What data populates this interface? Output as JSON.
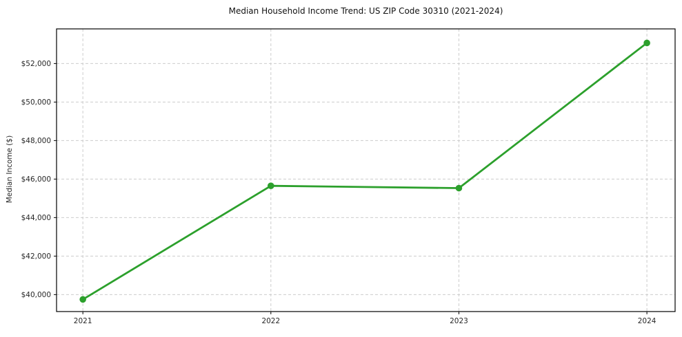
{
  "chart_data": {
    "type": "line",
    "title": "Median Household Income Trend: US ZIP Code 30310 (2021-2024)",
    "xlabel": "",
    "ylabel": "Median Income ($)",
    "x": [
      2021,
      2022,
      2023,
      2024
    ],
    "x_tick_labels": [
      "2021",
      "2022",
      "2023",
      "2024"
    ],
    "series": [
      {
        "name": "Median Household Income",
        "values": [
          39750,
          45650,
          45530,
          53070
        ]
      }
    ],
    "xlim": [
      2020.86,
      2024.15
    ],
    "ylim": [
      39120,
      53800
    ],
    "yticks": [
      40000,
      42000,
      44000,
      46000,
      48000,
      50000,
      52000
    ],
    "ytick_labels": [
      "$40,000",
      "$42,000",
      "$44,000",
      "$46,000",
      "$48,000",
      "$50,000",
      "$52,000"
    ],
    "grid": true,
    "grid_style": "dashed",
    "legend": "none",
    "colors": {
      "line": "#2ca02c",
      "marker": "#2ca02c",
      "grid": "#cccccc",
      "axis": "#000000",
      "background": "#ffffff",
      "text": "#262626"
    }
  }
}
